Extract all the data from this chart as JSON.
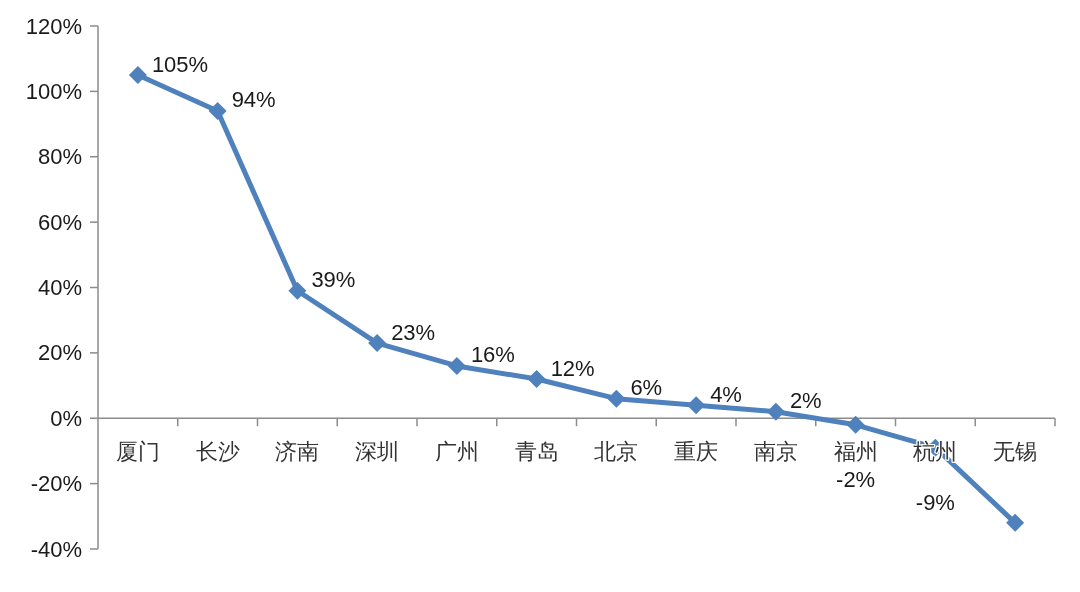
{
  "chart_data": {
    "type": "line",
    "categories": [
      "厦门",
      "长沙",
      "济南",
      "深圳",
      "广州",
      "青岛",
      "北京",
      "重庆",
      "南京",
      "福州",
      "杭州",
      "无锡"
    ],
    "series": [
      {
        "color": "#4f81bd",
        "values": [
          105,
          94,
          39,
          23,
          16,
          12,
          6,
          4,
          2,
          -2,
          -9,
          -32
        ],
        "value_labels": [
          "105%",
          "94%",
          "39%",
          "23%",
          "16%",
          "12%",
          "6%",
          "4%",
          "2%",
          "-2%",
          "-9%",
          null
        ]
      }
    ],
    "ylim": [
      -40,
      120
    ],
    "yticks": [
      {
        "value": -40,
        "label": "-40%"
      },
      {
        "value": -20,
        "label": "-20%"
      },
      {
        "value": 0,
        "label": "0%"
      },
      {
        "value": 20,
        "label": "20%"
      },
      {
        "value": 40,
        "label": "40%"
      },
      {
        "value": 60,
        "label": "60%"
      },
      {
        "value": 80,
        "label": "80%"
      },
      {
        "value": 100,
        "label": "100%"
      },
      {
        "value": 120,
        "label": "120%"
      }
    ],
    "marker": "diamond",
    "line_style": "solid"
  }
}
